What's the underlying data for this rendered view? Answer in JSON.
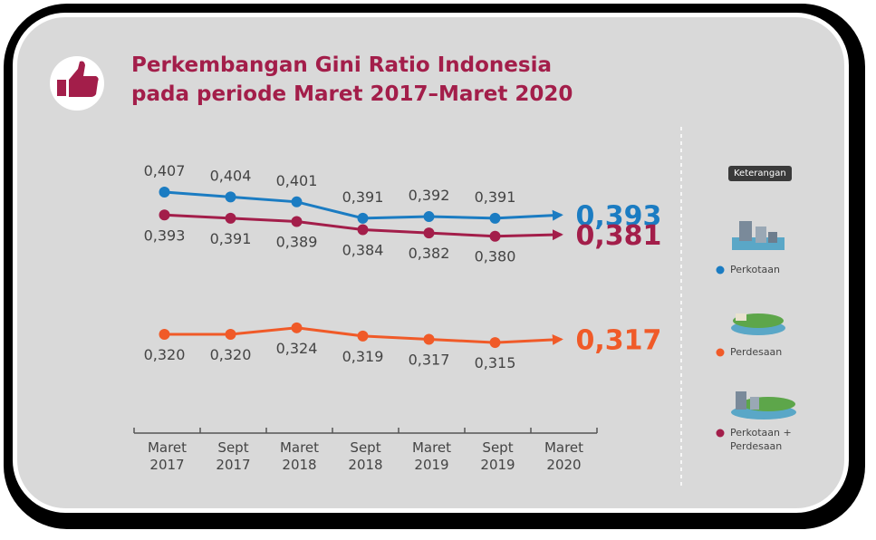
{
  "chart_data": {
    "type": "line",
    "title": "Perkembangan Gini Ratio Indonesia\npada periode Maret 2017–Maret 2020",
    "legend_title": "Keterangan",
    "categories": [
      "Maret 2017",
      "Sept 2017",
      "Maret 2018",
      "Sept 2018",
      "Maret 2019",
      "Sept 2019",
      "Maret 2020"
    ],
    "ylim": [
      0.29,
      0.44
    ],
    "series": [
      {
        "name": "Perkotaan",
        "color": "#1b7cc2",
        "label_position": "above",
        "values": [
          0.407,
          0.404,
          0.401,
          0.391,
          0.392,
          0.391,
          0.393
        ],
        "value_labels": [
          "0,407",
          "0,404",
          "0,401",
          "0,391",
          "0,392",
          "0,391",
          "0,393"
        ]
      },
      {
        "name": "Perdesaan",
        "color": "#f05a28",
        "label_position": "below",
        "values": [
          0.32,
          0.32,
          0.324,
          0.319,
          0.317,
          0.315,
          0.317
        ],
        "value_labels": [
          "0,320",
          "0,320",
          "0,324",
          "0,319",
          "0,317",
          "0,315",
          "0,317"
        ]
      },
      {
        "name": "Perkotaan + Perdesaan",
        "color": "#a31e4a",
        "label_position": "below",
        "values": [
          0.393,
          0.391,
          0.389,
          0.384,
          0.382,
          0.38,
          0.381
        ],
        "value_labels": [
          "0,393",
          "0,391",
          "0,389",
          "0,384",
          "0,382",
          "0,380",
          "0,381"
        ]
      }
    ]
  }
}
